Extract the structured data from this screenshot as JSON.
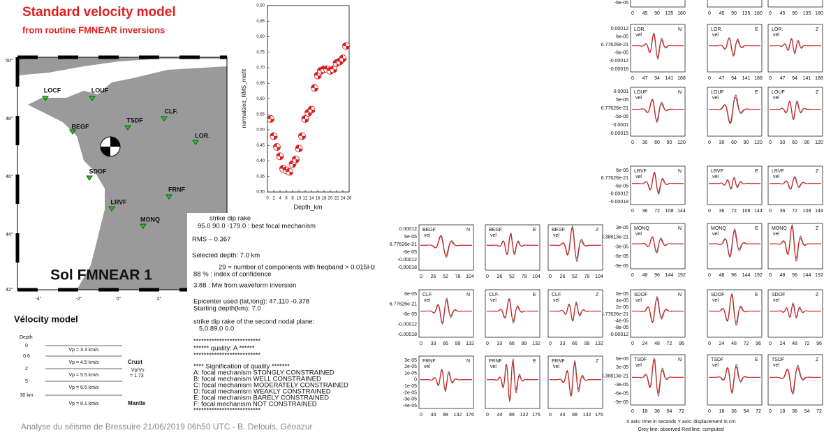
{
  "header": {
    "title": "Standard velocity model",
    "subtitle": "from routine FMNEAR inversions"
  },
  "map": {
    "label": "Sol FMNEAR 1",
    "lat_labels": [
      "50°",
      "48°",
      "46°",
      "44°",
      "42°"
    ],
    "lon_labels": [
      "-4°",
      "-2°",
      "0°",
      "2°"
    ],
    "stations": [
      "LOCF",
      "LOUF",
      "TSDF",
      "CLF.",
      "BEGF",
      "LOR.",
      "SDOF",
      "FRNF",
      "LRVF",
      "MONQ"
    ]
  },
  "chart_data": {
    "type": "scatter",
    "x_label": "Depth_km",
    "y_label": "normalized_RMS_misfit",
    "color": "#d62020",
    "x": [
      1,
      2,
      3,
      4,
      5,
      6,
      7,
      8,
      9,
      10,
      11,
      12,
      13,
      14,
      15,
      16,
      17,
      18,
      19,
      20,
      21,
      22,
      23,
      24,
      25
    ],
    "values": [
      0.535,
      0.48,
      0.445,
      0.415,
      0.375,
      0.37,
      0.365,
      0.39,
      0.405,
      0.44,
      0.48,
      0.535,
      0.555,
      0.565,
      0.635,
      0.675,
      0.69,
      0.695,
      0.695,
      0.69,
      0.695,
      0.715,
      0.72,
      0.73,
      0.77
    ],
    "xlim": [
      0,
      26
    ],
    "ylim": [
      0.3,
      0.9
    ],
    "xticks": [
      0,
      2,
      4,
      6,
      8,
      10,
      12,
      14,
      16,
      18,
      20,
      22,
      24,
      26
    ],
    "yticks": [
      {
        "value": 0.3,
        "label": "0.30"
      },
      {
        "value": 0.35,
        "label": "0.35"
      },
      {
        "value": 0.4,
        "label": "0.40"
      },
      {
        "value": 0.45,
        "label": "0.45"
      },
      {
        "value": 0.5,
        "label": "0.50"
      },
      {
        "value": 0.55,
        "label": "0.55"
      },
      {
        "value": 0.6,
        "label": "0.60"
      },
      {
        "value": 0.65,
        "label": "0.65"
      },
      {
        "value": 0.7,
        "label": "0.70"
      },
      {
        "value": 0.75,
        "label": "0.75"
      },
      {
        "value": 0.8,
        "label": "0.80"
      },
      {
        "value": 0.85,
        "label": "0.85"
      },
      {
        "value": 0.9,
        "label": "0.90"
      }
    ]
  },
  "results": {
    "lines": [
      "strike   dip   rake",
      "95.0  90.0 -179.0 : best focal mechanism",
      "RMS –  0.367",
      "Selected depth:  7.0 km",
      "29 = number of components with freqband > 0.015Hz",
      "88 % : index of confidence",
      "3.88 : Mw from waveform inversion",
      "Epicenter used (lat,long):    47.110    -0.378",
      "Starting depth(km):        7.0",
      "strike   dip   rake    of the second nodal plane:",
      "5.0   89.0    0.0",
      "**************************",
      "****** quality: A ******",
      "**************************",
      "**** Signification of quality *******",
      "A: focal mechanism STONGLY CONSTRAINED",
      "B: focal mechanism WELL CONSTRAINED",
      "C: focal mechanism MODERATELY CONSTRAINED",
      "D: focal mechanism WEAKLY CONSTRAINED",
      "E: focal mechanism BARELY CONSTRAINED",
      "F: focal mechanism NOT CONSTRAINED",
      "**************************"
    ]
  },
  "velocity_model": {
    "title": "Vélocity model",
    "depth_label": "Depth",
    "depths": [
      "0",
      "0.6",
      "2",
      "5",
      "30 km"
    ],
    "layers": [
      "Vp = 3.3 km/s",
      "Vp = 4.5 km/s",
      "Vp = 5.5 km/s",
      "Vp = 6.5 km/s",
      "Vp = 8.1 km/s"
    ],
    "crust": "Crust",
    "ratio": [
      "Vp/Vs",
      "= 1.73"
    ],
    "mantle": "Mantle"
  },
  "waveforms": {
    "components": [
      "N",
      "E",
      "Z"
    ],
    "sublabel": "vel",
    "rows": [
      {
        "yticks": [
          "-6e-05"
        ],
        "xticks": [
          "0",
          "45",
          "90",
          "135",
          "180"
        ]
      },
      {
        "station": "LOR.",
        "yticks": [
          "0.00012",
          "6e-05",
          "6.77626e-21",
          "-6e-05",
          "-0.00012",
          "-0.00018"
        ],
        "xticks": [
          "0",
          "47",
          "94",
          "141",
          "188"
        ]
      },
      {
        "station": "LOUF",
        "yticks": [
          "0.0001",
          "5e-05",
          "6.77626e-21",
          "-5e-05",
          "-0.0001",
          "-0.00015"
        ],
        "xticks": [
          "0",
          "30",
          "60",
          "90",
          "120"
        ]
      },
      {
        "station": "LRVF",
        "yticks": [
          "6e-05",
          "6.77626e-21",
          "-6e-05",
          "-0.00012",
          "-0.00018"
        ],
        "xticks": [
          "0",
          "36",
          "72",
          "108",
          "144"
        ]
      },
      {
        "station": "MONQ",
        "yticks": [
          "3e-05",
          "3.38813e-21",
          "-3e-05",
          "-6e-05",
          "-9e-05"
        ],
        "xticks": [
          "0",
          "48",
          "96",
          "144",
          "192"
        ]
      },
      {
        "station": "SDOF",
        "yticks": [
          "6e-05",
          "4e-05",
          "2e-05",
          "6.77626e-21",
          "-4e-05",
          "-8e-05",
          "-0.00012"
        ],
        "xticks": [
          "0",
          "24",
          "48",
          "72",
          "96"
        ]
      },
      {
        "station": "TSDF",
        "yticks": [
          "6e-05",
          "3e-05",
          "3.38813e-21",
          "-3e-05",
          "-6e-05",
          "-9e-05"
        ],
        "xticks": [
          "0",
          "18",
          "36",
          "54",
          "72"
        ]
      },
      {
        "station": "BEGF",
        "yticks": [
          "0.00012",
          "6e-05",
          "6.77626e-21",
          "-6e-05",
          "-0.00012",
          "-0.00018"
        ],
        "xticks": [
          "0",
          "26",
          "52",
          "78",
          "104"
        ]
      },
      {
        "station": "CLF.",
        "yticks": [
          "6e-05",
          "6.77626e-21",
          "-6e-05",
          "-0.00012",
          "-0.00018"
        ],
        "xticks": [
          "0",
          "33",
          "66",
          "99",
          "132"
        ]
      },
      {
        "station": "FRNF",
        "yticks": [
          "3e-05",
          "2e-05",
          "1e-05",
          "0",
          "-1e-05",
          "-2e-05",
          "-3e-05",
          "-4e-05"
        ],
        "xticks": [
          "0",
          "44",
          "88",
          "132",
          "176"
        ]
      }
    ],
    "notes": [
      "X axis: time in seconds   Y axis: displacement in cm",
      "Grey line: observed   Red line: computed"
    ]
  },
  "footer": "Analyse du séisme de Bressuire 21/06/2019 06h50 UTC - B. Delouis, Géoazur"
}
